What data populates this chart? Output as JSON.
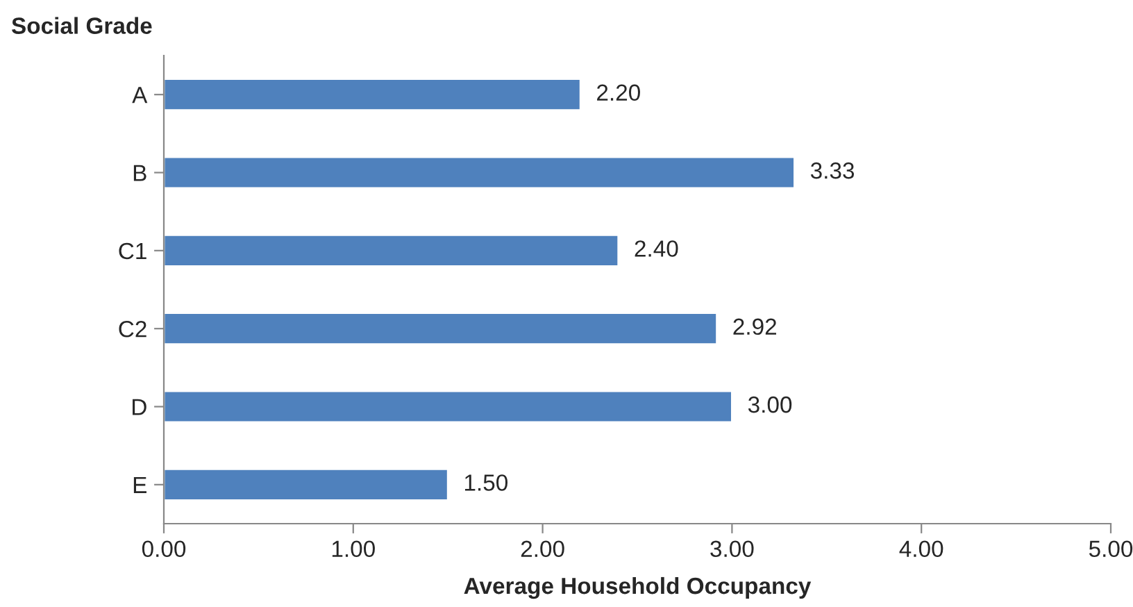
{
  "chart_data": {
    "type": "bar",
    "orientation": "horizontal",
    "ylabel": "Social Grade",
    "xlabel": "Average Household Occupancy",
    "categories": [
      "A",
      "B",
      "C1",
      "C2",
      "D",
      "E"
    ],
    "values": [
      2.2,
      3.33,
      2.4,
      2.92,
      3.0,
      1.5
    ],
    "value_labels": [
      "2.20",
      "3.33",
      "2.40",
      "2.92",
      "3.00",
      "1.50"
    ],
    "color": "#4f81bd",
    "xlim": [
      0,
      5
    ],
    "xticks": [
      {
        "value": 0,
        "label": "0.00"
      },
      {
        "value": 1,
        "label": "1.00"
      },
      {
        "value": 2,
        "label": "2.00"
      },
      {
        "value": 3,
        "label": "3.00"
      },
      {
        "value": 4,
        "label": "4.00"
      },
      {
        "value": 5,
        "label": "5.00"
      }
    ],
    "grid": false,
    "legend": false
  }
}
